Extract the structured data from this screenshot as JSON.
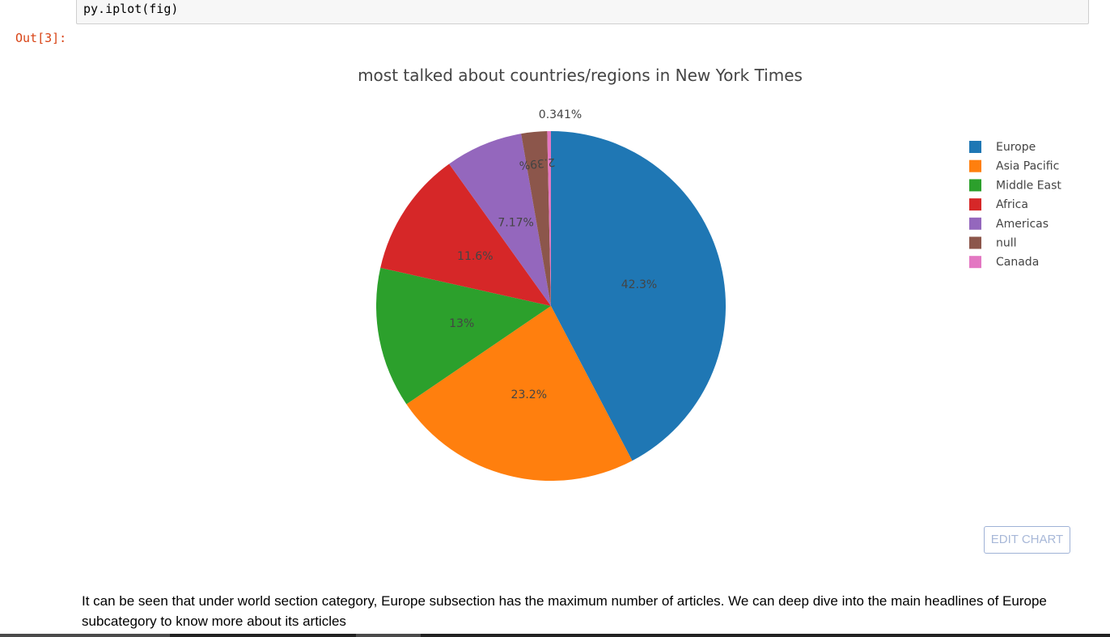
{
  "code_cell": {
    "code": "py.iplot(fig)"
  },
  "output": {
    "prompt": "Out[3]:"
  },
  "edit_chart": {
    "label": "EDIT CHART"
  },
  "markdown": {
    "text": "It can be seen that under world section category, Europe subsection has the maximum number of articles. We can deep dive into the main headlines of Europe subcategory to know more about its articles"
  },
  "chart_data": {
    "type": "pie",
    "title": "most talked about countries/regions in New York Times",
    "legend_position": "top-right",
    "slices": [
      {
        "label": "Europe",
        "value": 42.3,
        "text": "42.3%",
        "color": "#1f77b4"
      },
      {
        "label": "Asia Pacific",
        "value": 23.2,
        "text": "23.2%",
        "color": "#ff7f0e"
      },
      {
        "label": "Middle East",
        "value": 13,
        "text": "13%",
        "color": "#2ca02c"
      },
      {
        "label": "Africa",
        "value": 11.6,
        "text": "11.6%",
        "color": "#d62728"
      },
      {
        "label": "Americas",
        "value": 7.17,
        "text": "7.17%",
        "color": "#9467bd"
      },
      {
        "label": "null",
        "value": 2.39,
        "text": "2.39%",
        "color": "#8c564b"
      },
      {
        "label": "Canada",
        "value": 0.341,
        "text": "0.341%",
        "color": "#e377c2"
      }
    ]
  }
}
